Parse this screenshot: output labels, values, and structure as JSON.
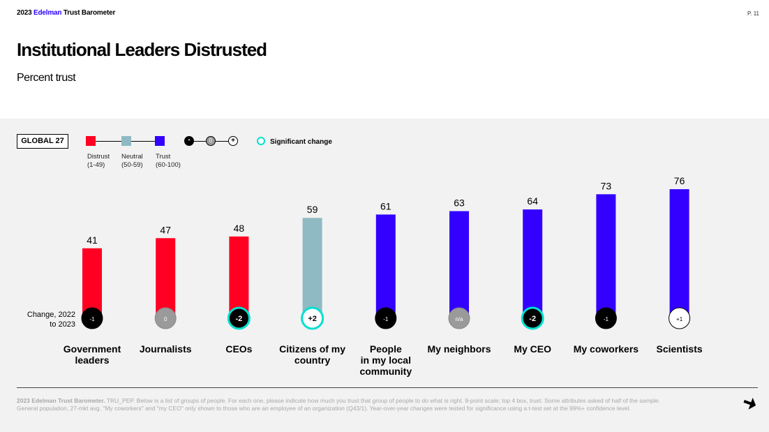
{
  "header": {
    "brand_prefix": "2023 ",
    "brand_accent": "Edelman",
    "brand_suffix": " Trust Barometer",
    "page_number": "P. 11"
  },
  "title": "Institutional Leaders Distrusted",
  "subtitle": "Percent trust",
  "legend": {
    "global_label": "GLOBAL 27",
    "items": [
      {
        "name": "Distrust",
        "range": "(1-49)",
        "color": "#ff0022"
      },
      {
        "name": "Neutral",
        "range": "(50-59)",
        "color": "#8fbac3"
      },
      {
        "name": "Trust",
        "range": "(60-100)",
        "color": "#3300ff"
      }
    ],
    "change_scale": [
      "-",
      "0",
      "+"
    ],
    "significant_change": "Significant change"
  },
  "change_label": "Change, 2022 to 2023",
  "chart_data": {
    "type": "bar",
    "title": "Institutional Leaders Distrusted",
    "subtitle": "Percent trust",
    "categories": [
      "Government leaders",
      "Journalists",
      "CEOs",
      "Citizens of my country",
      "People in my local community",
      "My neighbors",
      "My CEO",
      "My coworkers",
      "Scientists"
    ],
    "category_lines": [
      [
        "Government",
        "leaders"
      ],
      [
        "Journalists"
      ],
      [
        "CEOs"
      ],
      [
        "Citizens of my",
        "country"
      ],
      [
        "People",
        "in my local",
        "community"
      ],
      [
        "My neighbors"
      ],
      [
        "My CEO"
      ],
      [
        "My coworkers"
      ],
      [
        "Scientists"
      ]
    ],
    "values": [
      41,
      47,
      48,
      59,
      61,
      63,
      64,
      73,
      76
    ],
    "bar_colors": [
      "#ff0022",
      "#ff0022",
      "#ff0022",
      "#8fbac3",
      "#3300ff",
      "#3300ff",
      "#3300ff",
      "#3300ff",
      "#3300ff"
    ],
    "changes": [
      "-1",
      "0",
      "-2",
      "+2",
      "-1",
      "n/a",
      "-2",
      "-1",
      "+1"
    ],
    "change_direction": [
      "down",
      "none",
      "down",
      "up",
      "down",
      "na",
      "down",
      "down",
      "up"
    ],
    "significant": [
      false,
      false,
      true,
      true,
      false,
      false,
      true,
      false,
      false
    ],
    "ylim": [
      0,
      100
    ],
    "grid": false,
    "legend_position": "top-left"
  },
  "footnote": {
    "brand": "2023 Edelman Trust Barometer.",
    "text1": " TRU_PEP. Below is a list of groups of people. For each one, please indicate how much you trust that group of people to do what is right. 9-point scale; top 4 box, trust. Some attributes asked of half of the sample.",
    "text2": "General population, 27-mkt avg. \"My coworkers\" and \"my CEO\" only shown to those who are an employee of an organization (Q43/1). ",
    "text3": "Year-over-year changes were tested for significance using a t-test set at the 99%+ confidence level."
  }
}
